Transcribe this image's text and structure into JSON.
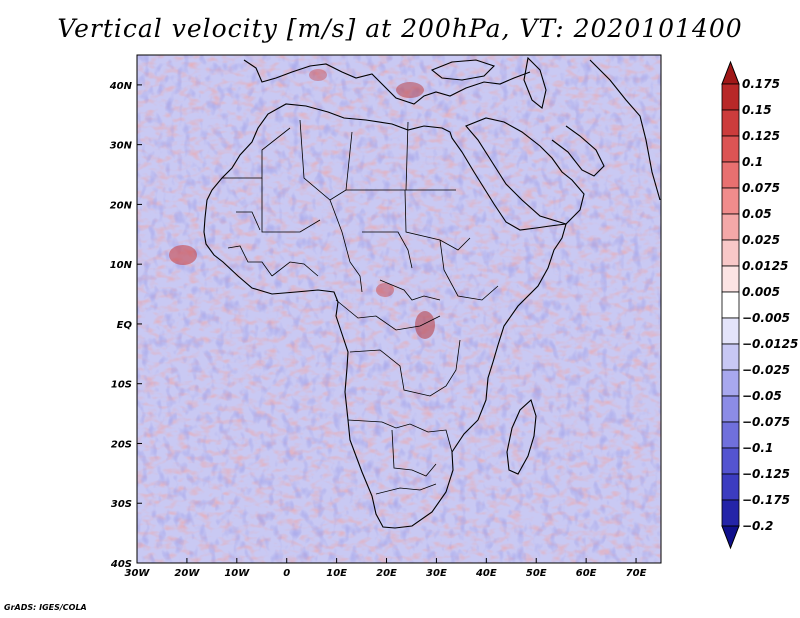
{
  "title": "Vertical velocity [m/s] at 200hPa, VT: 2020101400",
  "credit": "GrADS: IGES/COLA",
  "map": {
    "lon_range": [
      -30,
      75
    ],
    "lat_range": [
      -40,
      45
    ],
    "lon_labels": [
      "30W",
      "20W",
      "10W",
      "0",
      "10E",
      "20E",
      "30E",
      "40E",
      "50E",
      "60E",
      "70E"
    ],
    "lon_values": [
      -30,
      -20,
      -10,
      0,
      10,
      20,
      30,
      40,
      50,
      60,
      70
    ],
    "lat_labels": [
      "40N",
      "30N",
      "20N",
      "10N",
      "EQ",
      "10S",
      "20S",
      "30S",
      "40S"
    ],
    "lat_values": [
      40,
      30,
      20,
      10,
      0,
      -10,
      -20,
      -30,
      -40
    ]
  },
  "colorbar": {
    "levels": [
      "0.175",
      "0.15",
      "0.125",
      "0.1",
      "0.075",
      "0.05",
      "0.025",
      "0.0125",
      "0.005",
      "−0.005",
      "−0.0125",
      "−0.025",
      "−0.05",
      "−0.075",
      "−0.1",
      "−0.125",
      "−0.175",
      "−0.2"
    ],
    "colors": [
      "#a01818",
      "#b82828",
      "#cc3c3c",
      "#dc5454",
      "#e87070",
      "#f08c8c",
      "#f4a8a8",
      "#f8c8c8",
      "#fce4e4",
      "#ffffff",
      "#e4e4fa",
      "#c8c8f4",
      "#a8a8ee",
      "#8c8ce6",
      "#7070dc",
      "#5454d0",
      "#3c3cc0",
      "#2424a8",
      "#10108c"
    ]
  }
}
